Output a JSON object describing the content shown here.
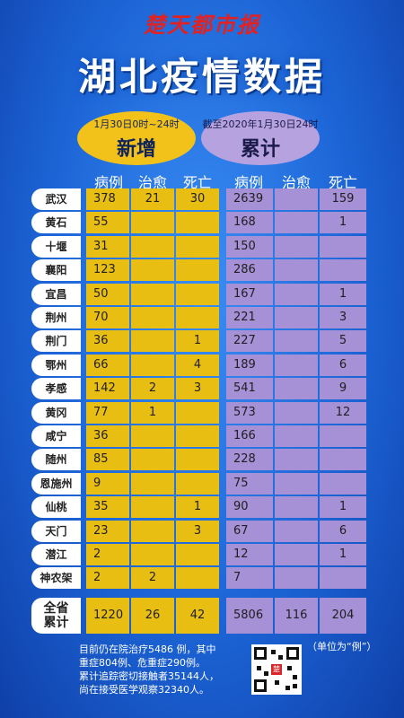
{
  "brand": "楚天都市报",
  "title": "湖北疫情数据",
  "new_section": {
    "subtitle": "1月30日0时~24时",
    "label": "新增"
  },
  "cumulative_section": {
    "subtitle": "截至2020年1月30日24时",
    "label": "累计"
  },
  "headers": {
    "new_cases": "病例",
    "new_cured": "治愈",
    "new_deaths": "死亡",
    "cum_cases": "病例",
    "cum_cured": "治愈",
    "cum_deaths": "死亡"
  },
  "rows": [
    {
      "city": "武汉",
      "new_cases": "378",
      "new_cured": "21",
      "new_deaths": "30",
      "cum_cases": "2639",
      "cum_cured": "",
      "cum_deaths": "159"
    },
    {
      "city": "黄石",
      "new_cases": "55",
      "new_cured": "",
      "new_deaths": "",
      "cum_cases": "168",
      "cum_cured": "",
      "cum_deaths": "1"
    },
    {
      "city": "十堰",
      "new_cases": "31",
      "new_cured": "",
      "new_deaths": "",
      "cum_cases": "150",
      "cum_cured": "",
      "cum_deaths": ""
    },
    {
      "city": "襄阳",
      "new_cases": "123",
      "new_cured": "",
      "new_deaths": "",
      "cum_cases": "286",
      "cum_cured": "",
      "cum_deaths": ""
    },
    {
      "city": "宜昌",
      "new_cases": "50",
      "new_cured": "",
      "new_deaths": "",
      "cum_cases": "167",
      "cum_cured": "",
      "cum_deaths": "1"
    },
    {
      "city": "荆州",
      "new_cases": "70",
      "new_cured": "",
      "new_deaths": "",
      "cum_cases": "221",
      "cum_cured": "",
      "cum_deaths": "3"
    },
    {
      "city": "荆门",
      "new_cases": "36",
      "new_cured": "",
      "new_deaths": "1",
      "cum_cases": "227",
      "cum_cured": "",
      "cum_deaths": "5"
    },
    {
      "city": "鄂州",
      "new_cases": "66",
      "new_cured": "",
      "new_deaths": "4",
      "cum_cases": "189",
      "cum_cured": "",
      "cum_deaths": "6"
    },
    {
      "city": "孝感",
      "new_cases": "142",
      "new_cured": "2",
      "new_deaths": "3",
      "cum_cases": "541",
      "cum_cured": "",
      "cum_deaths": "9"
    },
    {
      "city": "黄冈",
      "new_cases": "77",
      "new_cured": "1",
      "new_deaths": "",
      "cum_cases": "573",
      "cum_cured": "",
      "cum_deaths": "12"
    },
    {
      "city": "咸宁",
      "new_cases": "36",
      "new_cured": "",
      "new_deaths": "",
      "cum_cases": "166",
      "cum_cured": "",
      "cum_deaths": ""
    },
    {
      "city": "随州",
      "new_cases": "85",
      "new_cured": "",
      "new_deaths": "",
      "cum_cases": "228",
      "cum_cured": "",
      "cum_deaths": ""
    },
    {
      "city": "恩施州",
      "new_cases": "9",
      "new_cured": "",
      "new_deaths": "",
      "cum_cases": "75",
      "cum_cured": "",
      "cum_deaths": ""
    },
    {
      "city": "仙桃",
      "new_cases": "35",
      "new_cured": "",
      "new_deaths": "1",
      "cum_cases": "90",
      "cum_cured": "",
      "cum_deaths": "1"
    },
    {
      "city": "天门",
      "new_cases": "23",
      "new_cured": "",
      "new_deaths": "3",
      "cum_cases": "67",
      "cum_cured": "",
      "cum_deaths": "6"
    },
    {
      "city": "潜江",
      "new_cases": "2",
      "new_cured": "",
      "new_deaths": "",
      "cum_cases": "12",
      "cum_cured": "",
      "cum_deaths": "1"
    },
    {
      "city": "神农架",
      "new_cases": "2",
      "new_cured": "2",
      "new_deaths": "",
      "cum_cases": "7",
      "cum_cured": "",
      "cum_deaths": ""
    }
  ],
  "total": {
    "label_line1": "全省",
    "label_line2": "累计",
    "new_cases": "1220",
    "new_cured": "26",
    "new_deaths": "42",
    "cum_cases": "5806",
    "cum_cured": "116",
    "cum_deaths": "204"
  },
  "note_lines": [
    "目前仍在院治疗5486 例，其中",
    "重症804例、危重症290例。",
    "累计追踪密切接触者35144人，",
    "尚在接受医学观察32340人。"
  ],
  "unit_note": "（单位为“例”）",
  "qr_logo": "楚",
  "colors": {
    "new_fill": "#e8be12",
    "cumulative_fill": "#a690d6",
    "brand_red": "#e02222"
  }
}
